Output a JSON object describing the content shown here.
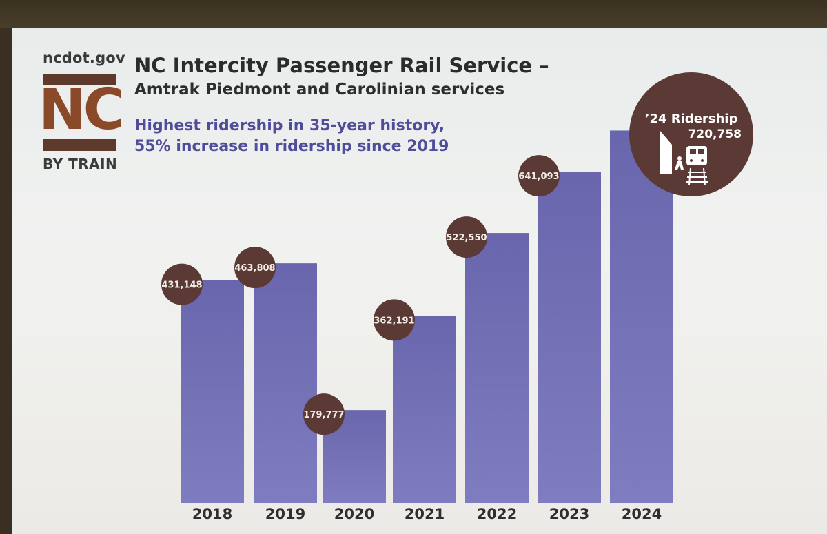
{
  "brand": {
    "site": "ncdot.gov",
    "logo_text": "NC",
    "logo_sub": "BY TRAIN"
  },
  "title": "NC Intercity Passenger Rail Service –",
  "subtitle": "Amtrak Piedmont and Carolinian services",
  "highlight": {
    "line1": "Highest ridership in 35-year history,",
    "line2": "55% increase in ridership since 2019"
  },
  "callout": {
    "line1": "’24 Ridership",
    "line2": "720,758",
    "icon": "train-platform-icon"
  },
  "colors": {
    "bar": "#7f7cc0",
    "bar_dark": "#6966ad",
    "bubble": "#5b3a36",
    "highlight_text": "#4f4d9a"
  },
  "chart_data": {
    "type": "bar",
    "categories": [
      "2018",
      "2019",
      "2020",
      "2021",
      "2022",
      "2023",
      "2024"
    ],
    "values": [
      431148,
      463808,
      179777,
      362191,
      522550,
      641093,
      720758
    ],
    "data_labels": [
      "431,148",
      "463,808",
      "179,777",
      "362,191",
      "522,550",
      "641,093",
      ""
    ],
    "title": "NC Intercity Passenger Rail Service –",
    "xlabel": "",
    "ylabel": "",
    "grid": false
  }
}
